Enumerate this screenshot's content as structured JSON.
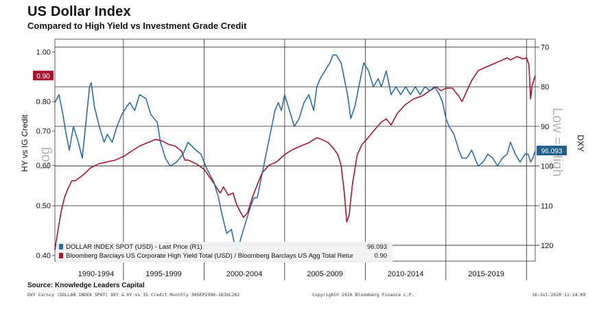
{
  "header": {
    "title": "US Dollar Index",
    "subtitle": "Compared to High Yield vs Investment Grade Credit"
  },
  "footer": {
    "source": "Source: Knowledge Leaders Capital",
    "ticker_info": "DXY Curncy (DOLLAR INDEX SPOT) DXY & HY vs IG Credit  Monthly 30SEP1990-16JUL202",
    "copyright": "Copyright© 2020 Bloomberg Finance L.P.",
    "timestamp": "16-Jul-2020 11:14:09"
  },
  "colors": {
    "dxy": "#2e6b9e",
    "ratio": "#a31531",
    "grid": "#222222",
    "watermark": "#b4b4b4",
    "legend_bg": "#f1f1f1"
  },
  "chart_data": {
    "type": "line",
    "title": "US Dollar Index",
    "subtitle": "Compared to High Yield vs Investment Grade Credit",
    "x_range": [
      1990.75,
      2020.54
    ],
    "x_tick_labels": [
      "1990-1994",
      "1995-1999",
      "2000-2004",
      "2005-2009",
      "2010-2014",
      "2015-2019"
    ],
    "left_axis": {
      "label": "HY vs IG Credit",
      "watermark": "Log",
      "scale": "log",
      "range": [
        0.39,
        1.06
      ],
      "ticks": [
        "1.00",
        "0.80",
        "0.70",
        "0.60",
        "0.50",
        "0.40"
      ],
      "last_value_label": "0.90"
    },
    "right_axis": {
      "label": "DXY",
      "watermark": "Low = High",
      "inverted": true,
      "range": [
        68,
        124
      ],
      "ticks": [
        "70",
        "80",
        "90",
        "100",
        "110",
        "120"
      ],
      "last_value_label": "96.093"
    },
    "grid": true,
    "legend_placement": "bottom-left",
    "series": [
      {
        "name": "DOLLAR INDEX SPOT (USD) - Last Price (R1)",
        "last_value": "96.093",
        "axis": "right",
        "points": [
          [
            1990.75,
            84
          ],
          [
            1991.0,
            82
          ],
          [
            1991.2,
            86
          ],
          [
            1991.45,
            92
          ],
          [
            1991.65,
            96
          ],
          [
            1991.9,
            90
          ],
          [
            1992.2,
            94
          ],
          [
            1992.45,
            98
          ],
          [
            1992.7,
            88
          ],
          [
            1992.9,
            80
          ],
          [
            1993.0,
            79
          ],
          [
            1993.2,
            85
          ],
          [
            1993.5,
            90
          ],
          [
            1993.8,
            94
          ],
          [
            1994.0,
            92
          ],
          [
            1994.3,
            94
          ],
          [
            1994.6,
            90
          ],
          [
            1994.9,
            87
          ],
          [
            1995.2,
            85
          ],
          [
            1995.4,
            84
          ],
          [
            1995.7,
            86
          ],
          [
            1996.0,
            82
          ],
          [
            1996.4,
            83
          ],
          [
            1996.7,
            87
          ],
          [
            1996.9,
            88
          ],
          [
            1997.1,
            89
          ],
          [
            1997.3,
            94
          ],
          [
            1997.6,
            98
          ],
          [
            1997.9,
            100
          ],
          [
            1998.3,
            99
          ],
          [
            1998.7,
            97
          ],
          [
            1999.0,
            94
          ],
          [
            1999.5,
            96
          ],
          [
            1999.8,
            97
          ],
          [
            2000.2,
            101
          ],
          [
            2000.6,
            104
          ],
          [
            2000.9,
            108
          ],
          [
            2001.1,
            112
          ],
          [
            2001.4,
            117
          ],
          [
            2001.7,
            116
          ],
          [
            2001.9,
            120
          ],
          [
            2002.1,
            121
          ],
          [
            2002.3,
            118
          ],
          [
            2002.6,
            114
          ],
          [
            2002.9,
            110
          ],
          [
            2003.1,
            108
          ],
          [
            2003.3,
            108
          ],
          [
            2003.55,
            103
          ],
          [
            2003.8,
            98
          ],
          [
            2004.0,
            94
          ],
          [
            2004.2,
            90
          ],
          [
            2004.4,
            86
          ],
          [
            2004.6,
            84
          ],
          [
            2004.8,
            86
          ],
          [
            2005.0,
            82
          ],
          [
            2005.3,
            86
          ],
          [
            2005.6,
            90
          ],
          [
            2005.9,
            88
          ],
          [
            2006.2,
            84
          ],
          [
            2006.5,
            82
          ],
          [
            2006.8,
            86
          ],
          [
            2007.0,
            80
          ],
          [
            2007.2,
            78
          ],
          [
            2007.5,
            76
          ],
          [
            2007.8,
            74
          ],
          [
            2008.0,
            72
          ],
          [
            2008.2,
            72
          ],
          [
            2008.5,
            74
          ],
          [
            2008.7,
            78
          ],
          [
            2008.9,
            82
          ],
          [
            2009.1,
            88
          ],
          [
            2009.35,
            85
          ],
          [
            2009.6,
            80
          ],
          [
            2009.9,
            74
          ],
          [
            2010.2,
            76
          ],
          [
            2010.5,
            80
          ],
          [
            2010.8,
            78
          ],
          [
            2011.0,
            80
          ],
          [
            2011.3,
            76
          ],
          [
            2011.6,
            82
          ],
          [
            2011.9,
            80
          ],
          [
            2012.2,
            82
          ],
          [
            2012.5,
            80
          ],
          [
            2012.8,
            82
          ],
          [
            2013.1,
            80
          ],
          [
            2013.4,
            82
          ],
          [
            2013.7,
            80
          ],
          [
            2014.0,
            81
          ],
          [
            2014.3,
            80
          ],
          [
            2014.6,
            82
          ],
          [
            2014.8,
            84
          ],
          [
            2015.0,
            88
          ],
          [
            2015.2,
            90
          ],
          [
            2015.5,
            92
          ],
          [
            2015.8,
            96
          ],
          [
            2016.0,
            98
          ],
          [
            2016.3,
            98
          ],
          [
            2016.6,
            96
          ],
          [
            2016.8,
            98
          ],
          [
            2017.0,
            100
          ],
          [
            2017.3,
            99
          ],
          [
            2017.6,
            97
          ],
          [
            2017.9,
            98
          ],
          [
            2018.2,
            100
          ],
          [
            2018.5,
            98
          ],
          [
            2018.8,
            97
          ],
          [
            2019.0,
            94
          ],
          [
            2019.3,
            97
          ],
          [
            2019.6,
            99
          ],
          [
            2019.9,
            97
          ],
          [
            2020.1,
            97
          ],
          [
            2020.25,
            99
          ],
          [
            2020.4,
            98
          ],
          [
            2020.54,
            96.1
          ]
        ]
      },
      {
        "name": "Bloomberg Barclays US Corporate High Yield Total (USD) / Bloomberg Barclays US Agg Total Retur",
        "last_value": "0.90",
        "axis": "left",
        "points": [
          [
            1990.75,
            0.41
          ],
          [
            1990.95,
            0.45
          ],
          [
            1991.15,
            0.49
          ],
          [
            1991.35,
            0.52
          ],
          [
            1991.55,
            0.54
          ],
          [
            1991.8,
            0.56
          ],
          [
            1992.0,
            0.56
          ],
          [
            1992.5,
            0.575
          ],
          [
            1993.0,
            0.595
          ],
          [
            1993.5,
            0.605
          ],
          [
            1994.0,
            0.61
          ],
          [
            1994.5,
            0.615
          ],
          [
            1995.0,
            0.625
          ],
          [
            1995.5,
            0.64
          ],
          [
            1996.0,
            0.655
          ],
          [
            1996.5,
            0.665
          ],
          [
            1997.0,
            0.675
          ],
          [
            1997.4,
            0.67
          ],
          [
            1997.8,
            0.66
          ],
          [
            1998.2,
            0.655
          ],
          [
            1998.6,
            0.64
          ],
          [
            1998.8,
            0.615
          ],
          [
            1999.0,
            0.615
          ],
          [
            1999.5,
            0.605
          ],
          [
            2000.0,
            0.59
          ],
          [
            2000.5,
            0.56
          ],
          [
            2001.0,
            0.53
          ],
          [
            2001.2,
            0.545
          ],
          [
            2001.5,
            0.525
          ],
          [
            2001.8,
            0.53
          ],
          [
            2002.0,
            0.505
          ],
          [
            2002.2,
            0.49
          ],
          [
            2002.45,
            0.475
          ],
          [
            2002.7,
            0.485
          ],
          [
            2003.0,
            0.52
          ],
          [
            2003.3,
            0.55
          ],
          [
            2003.6,
            0.58
          ],
          [
            2004.0,
            0.6
          ],
          [
            2004.5,
            0.61
          ],
          [
            2005.0,
            0.63
          ],
          [
            2005.5,
            0.645
          ],
          [
            2006.0,
            0.655
          ],
          [
            2006.5,
            0.665
          ],
          [
            2007.0,
            0.68
          ],
          [
            2007.3,
            0.675
          ],
          [
            2007.7,
            0.665
          ],
          [
            2008.0,
            0.65
          ],
          [
            2008.3,
            0.63
          ],
          [
            2008.5,
            0.6
          ],
          [
            2008.7,
            0.53
          ],
          [
            2008.85,
            0.465
          ],
          [
            2009.0,
            0.48
          ],
          [
            2009.2,
            0.55
          ],
          [
            2009.5,
            0.63
          ],
          [
            2009.8,
            0.66
          ],
          [
            2010.0,
            0.67
          ],
          [
            2010.5,
            0.7
          ],
          [
            2011.0,
            0.73
          ],
          [
            2011.3,
            0.74
          ],
          [
            2011.6,
            0.72
          ],
          [
            2012.0,
            0.76
          ],
          [
            2012.5,
            0.79
          ],
          [
            2013.0,
            0.81
          ],
          [
            2013.5,
            0.82
          ],
          [
            2014.0,
            0.84
          ],
          [
            2014.4,
            0.855
          ],
          [
            2014.7,
            0.84
          ],
          [
            2015.0,
            0.85
          ],
          [
            2015.4,
            0.85
          ],
          [
            2015.8,
            0.82
          ],
          [
            2016.0,
            0.8
          ],
          [
            2016.3,
            0.84
          ],
          [
            2016.6,
            0.88
          ],
          [
            2017.0,
            0.92
          ],
          [
            2017.5,
            0.935
          ],
          [
            2018.0,
            0.95
          ],
          [
            2018.5,
            0.965
          ],
          [
            2018.8,
            0.975
          ],
          [
            2019.0,
            0.965
          ],
          [
            2019.4,
            0.98
          ],
          [
            2019.8,
            0.97
          ],
          [
            2020.0,
            0.975
          ],
          [
            2020.15,
            0.945
          ],
          [
            2020.25,
            0.81
          ],
          [
            2020.35,
            0.86
          ],
          [
            2020.54,
            0.9
          ]
        ]
      }
    ]
  }
}
